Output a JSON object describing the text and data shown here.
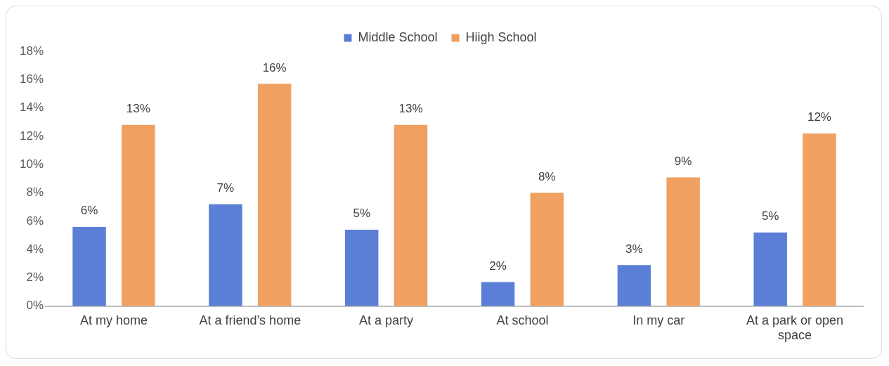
{
  "chart_data": {
    "type": "bar",
    "categories": [
      "At my home",
      "At a friend’s home",
      "At a party",
      "At school",
      "In my car",
      "At a park or open space"
    ],
    "series": [
      {
        "name": "Middle School",
        "color": "#5b7fd6",
        "values": [
          5.6,
          7.2,
          5.4,
          1.7,
          2.9,
          5.2
        ],
        "value_labels": [
          "6%",
          "7%",
          "5%",
          "2%",
          "3%",
          "5%"
        ]
      },
      {
        "name": "Hiigh School",
        "color": "#f0a060",
        "values": [
          12.8,
          15.7,
          12.8,
          8.0,
          9.1,
          12.2
        ],
        "value_labels": [
          "13%",
          "16%",
          "13%",
          "8%",
          "9%",
          "12%"
        ]
      }
    ],
    "ylim": [
      0,
      18
    ],
    "yticks": [
      {
        "value": 0,
        "label": "0%"
      },
      {
        "value": 2,
        "label": "2%"
      },
      {
        "value": 4,
        "label": "4%"
      },
      {
        "value": 6,
        "label": "6%"
      },
      {
        "value": 8,
        "label": "8%"
      },
      {
        "value": 10,
        "label": "10%"
      },
      {
        "value": 12,
        "label": "12%"
      },
      {
        "value": 14,
        "label": "14%"
      },
      {
        "value": 16,
        "label": "16%"
      },
      {
        "value": 18,
        "label": "18%"
      }
    ],
    "grid": false,
    "legend": "top"
  }
}
